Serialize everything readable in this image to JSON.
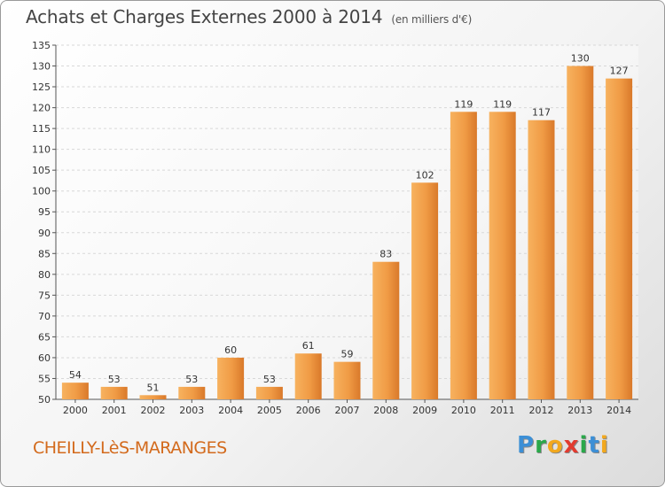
{
  "header": {
    "title": "Achats et Charges Externes 2000 à 2014",
    "unit": "(en milliers d'€)"
  },
  "footer": {
    "commune": "CHEILLY-LèS-MARANGES",
    "logo": [
      "P",
      "r",
      "o",
      "x",
      "i",
      "t",
      "i"
    ],
    "logo_colors": [
      "#3c8fd6",
      "#2aa84a",
      "#f2a81d",
      "#e23b2f",
      "#2aa84a",
      "#3c8fd6",
      "#f2a81d"
    ]
  },
  "chart_data": {
    "type": "bar",
    "title": "Achats et Charges Externes 2000 à 2014",
    "categories": [
      "2000",
      "2001",
      "2002",
      "2003",
      "2004",
      "2005",
      "2006",
      "2007",
      "2008",
      "2009",
      "2010",
      "2011",
      "2012",
      "2013",
      "2014"
    ],
    "values": [
      54,
      53,
      51,
      53,
      60,
      53,
      61,
      59,
      83,
      102,
      119,
      119,
      117,
      130,
      127
    ],
    "ylim": [
      50,
      135
    ],
    "yticks": [
      50,
      55,
      60,
      65,
      70,
      75,
      80,
      85,
      90,
      95,
      100,
      105,
      110,
      115,
      120,
      125,
      130,
      135
    ],
    "grid": true,
    "bar_color": "#f09b45",
    "xlabel": "",
    "ylabel": ""
  }
}
